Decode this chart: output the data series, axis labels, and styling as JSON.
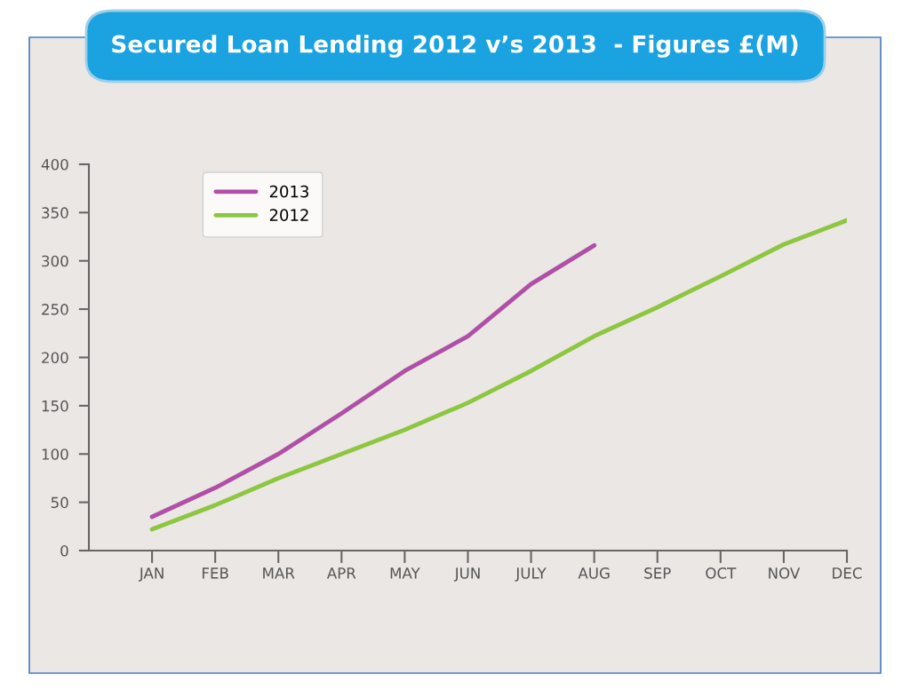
{
  "chart_data": {
    "type": "line",
    "title": "Secured Loan Lending 2012 v’s 2013  - Figures £(M)",
    "categories": [
      "JAN",
      "FEB",
      "MAR",
      "APR",
      "MAY",
      "JUN",
      "JULY",
      "AUG",
      "SEP",
      "OCT",
      "NOV",
      "DEC"
    ],
    "series": [
      {
        "name": "2013",
        "color": "#b04fa6",
        "values": [
          35,
          65,
          100,
          142,
          186,
          222,
          276,
          316,
          null,
          null,
          null,
          null
        ]
      },
      {
        "name": "2012",
        "color": "#8dc63f",
        "values": [
          22,
          47,
          75,
          100,
          125,
          153,
          186,
          222,
          252,
          284,
          317,
          342
        ]
      }
    ],
    "ylim": [
      0,
      400
    ],
    "yticks": [
      0,
      50,
      100,
      150,
      200,
      250,
      300,
      350,
      400
    ],
    "grid": false,
    "legend": "top left",
    "marker": "none",
    "line_style": "solid"
  }
}
